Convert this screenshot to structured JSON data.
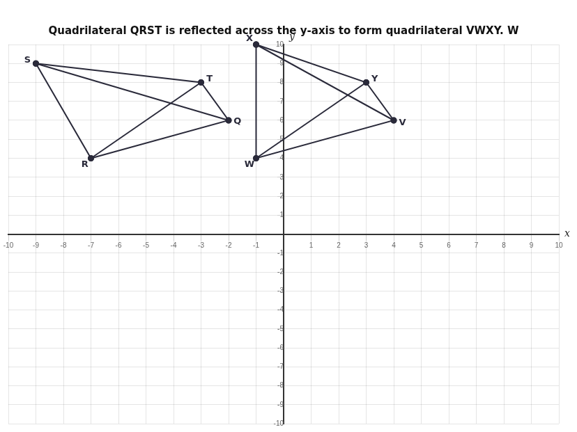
{
  "chart_data": {
    "type": "line",
    "title": "Quadrilateral QRST is reflected across the y-axis to form quadrilateral VWXY. W",
    "x_label": "x",
    "y_label": "y",
    "xlim": [
      -10,
      10
    ],
    "ylim": [
      -10,
      10
    ],
    "xticks": [
      -10,
      -9,
      -8,
      -7,
      -6,
      -5,
      -4,
      -3,
      -2,
      -1,
      1,
      2,
      3,
      4,
      5,
      6,
      7,
      8,
      9,
      10
    ],
    "yticks": [
      -10,
      -9,
      -8,
      -7,
      -6,
      -5,
      -4,
      -3,
      -2,
      -1,
      1,
      2,
      3,
      4,
      5,
      6,
      7,
      8,
      9,
      10
    ],
    "grid": true,
    "color": "#2a2a3a",
    "marker": "circle",
    "line_style": "solid",
    "series": [
      {
        "x": [
          -9,
          -3,
          -2,
          -7,
          -9
        ],
        "y": [
          9,
          8,
          6,
          4,
          9
        ]
      },
      {
        "x": [
          -9,
          -2
        ],
        "y": [
          9,
          6
        ]
      },
      {
        "x": [
          -3,
          -7
        ],
        "y": [
          8,
          4
        ]
      },
      {
        "x": [
          -1,
          3,
          4,
          -1,
          -1
        ],
        "y": [
          10,
          8,
          6,
          4,
          10
        ]
      },
      {
        "x": [
          -1,
          4
        ],
        "y": [
          10,
          6
        ]
      },
      {
        "x": [
          3,
          -1
        ],
        "y": [
          8,
          4
        ]
      }
    ],
    "annotations": [
      {
        "text": "Q",
        "x": -2,
        "y": 6
      },
      {
        "text": "R",
        "x": -7,
        "y": 4
      },
      {
        "text": "S",
        "x": -9,
        "y": 9
      },
      {
        "text": "T",
        "x": -3,
        "y": 8
      },
      {
        "text": "V",
        "x": 4,
        "y": 6
      },
      {
        "text": "W",
        "x": -1,
        "y": 4
      },
      {
        "text": "X",
        "x": -1,
        "y": 10
      },
      {
        "text": "Y",
        "x": 3,
        "y": 8
      }
    ]
  }
}
